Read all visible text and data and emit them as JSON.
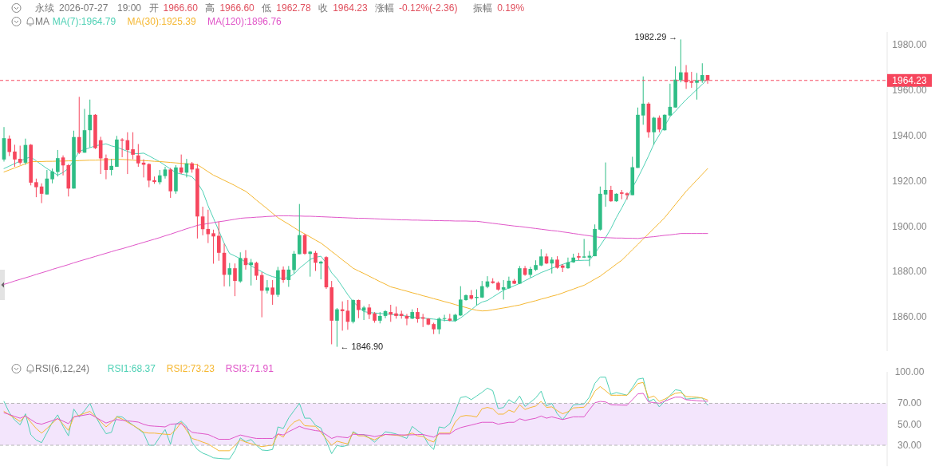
{
  "chart_data": [
    {
      "type": "candlestick",
      "title": "永续 2026-07-27 19:00 开 1966.60 高 1966.60 低 1962.78 收 1964.23 涨幅 -0.12%(-2.36) 振幅 0.19%",
      "legend_title": "MA",
      "legend": "top",
      "tick_labels": "y",
      "categories": [
        null,
        null,
        null,
        null,
        null,
        null,
        null,
        null,
        null,
        null,
        null,
        null,
        null,
        null,
        null,
        null,
        null,
        null,
        null,
        null,
        null,
        null,
        null,
        null,
        null,
        null,
        null,
        null,
        null,
        null,
        null,
        null,
        null,
        null,
        null,
        null,
        null,
        null,
        null,
        null,
        null,
        null,
        null,
        null,
        null,
        null,
        null,
        null,
        null,
        null,
        null,
        null,
        null,
        null,
        null,
        null,
        null,
        null,
        null,
        null,
        null,
        null,
        null,
        null,
        null,
        null,
        null,
        null,
        null,
        null,
        null,
        null,
        null,
        null,
        null,
        null,
        null,
        null,
        null,
        null,
        null,
        null,
        null,
        null,
        null,
        null,
        null,
        null,
        null,
        null,
        null,
        null,
        null,
        null,
        null,
        null,
        null,
        null,
        null,
        null,
        null,
        null,
        null,
        null,
        null,
        null,
        null,
        null,
        null,
        null,
        null,
        null,
        null,
        null,
        null,
        null,
        null,
        null,
        null,
        null,
        null,
        null,
        null,
        null,
        null,
        null,
        null,
        null,
        null,
        null,
        null,
        null
      ],
      "ohlc": [
        [
          1929.4,
          1943.7,
          1928.5,
          1938.8
        ],
        [
          1938.6,
          1940,
          1930.9,
          1932.7
        ],
        [
          1932.9,
          1935.9,
          1926.2,
          1929.4
        ],
        [
          1929.7,
          1935.5,
          1927.1,
          1928
        ],
        [
          1928,
          1938.6,
          1927.1,
          1935.8
        ],
        [
          1935.9,
          1936.2,
          1918,
          1919.2
        ],
        [
          1919.4,
          1921,
          1912.8,
          1917.2
        ],
        [
          1917.5,
          1918.9,
          1910.2,
          1914.3
        ],
        [
          1914,
          1924.8,
          1914,
          1921
        ],
        [
          1920.7,
          1925.4,
          1918.9,
          1924.1
        ],
        [
          1923.9,
          1933.6,
          1921.9,
          1930
        ],
        [
          1930.3,
          1931.2,
          1922.4,
          1926.8
        ],
        [
          1926.9,
          1927.4,
          1913.1,
          1916.6
        ],
        [
          1916.6,
          1942.1,
          1916.6,
          1939.3
        ],
        [
          1939.3,
          1957,
          1931.8,
          1932.4
        ],
        [
          1932.4,
          1951.7,
          1932.4,
          1942.3
        ],
        [
          1942.3,
          1955.8,
          1934.7,
          1949.1
        ],
        [
          1949.1,
          1949.4,
          1934,
          1934.4
        ],
        [
          1937.9,
          1939.4,
          1923,
          1929.9
        ],
        [
          1930,
          1931.6,
          1920.7,
          1924.8
        ],
        [
          1924.8,
          1929.7,
          1922.4,
          1926.6
        ],
        [
          1926.2,
          1939.8,
          1926.2,
          1938.2
        ],
        [
          1938.2,
          1938.8,
          1930.4,
          1937.7
        ],
        [
          1937.9,
          1941.4,
          1923,
          1933.6
        ],
        [
          1933.9,
          1941.4,
          1929.5,
          1931.5
        ],
        [
          1931.2,
          1936.2,
          1926.2,
          1927.7
        ],
        [
          1928,
          1929.5,
          1921.5,
          1927.1
        ],
        [
          1927.4,
          1927.7,
          1917.2,
          1920.1
        ],
        [
          1920.3,
          1921.9,
          1918.7,
          1919.5
        ],
        [
          1919.4,
          1924.8,
          1918.4,
          1922.4
        ],
        [
          1922.1,
          1926.2,
          1921,
          1925
        ],
        [
          1925,
          1925.7,
          1912.5,
          1915.4
        ],
        [
          1915.4,
          1926.9,
          1914.3,
          1925.9
        ],
        [
          1925.9,
          1931.6,
          1923,
          1923.6
        ],
        [
          1923.6,
          1929.7,
          1921.5,
          1927.7
        ],
        [
          1927.7,
          1928.3,
          1923.6,
          1925
        ],
        [
          1925.4,
          1927.4,
          1894.6,
          1904.3
        ],
        [
          1904.3,
          1908.6,
          1896,
          1898.7
        ],
        [
          1898.8,
          1907.3,
          1892.6,
          1896.5
        ],
        [
          1896.9,
          1898.5,
          1883.5,
          1895.5
        ],
        [
          1895.8,
          1902,
          1884.8,
          1888.3
        ],
        [
          1888.3,
          1892.3,
          1873.5,
          1878.6
        ],
        [
          1878.6,
          1883.8,
          1873.5,
          1881.5
        ],
        [
          1881.5,
          1883.6,
          1869.2,
          1875.9
        ],
        [
          1875.7,
          1888.5,
          1875.1,
          1886
        ],
        [
          1886,
          1889.5,
          1880.9,
          1882.9
        ],
        [
          1882.9,
          1885.6,
          1873.9,
          1884.1
        ],
        [
          1883.9,
          1884.4,
          1876.3,
          1878.2
        ],
        [
          1878.5,
          1879.8,
          1859.9,
          1871.6
        ],
        [
          1871.6,
          1876.3,
          1870.4,
          1873
        ],
        [
          1873,
          1876.3,
          1865.4,
          1869.8
        ],
        [
          1869.8,
          1882.1,
          1868.9,
          1880.6
        ],
        [
          1880.9,
          1882.3,
          1875.1,
          1876.3
        ],
        [
          1876.3,
          1882.5,
          1873.3,
          1880.9
        ],
        [
          1880.7,
          1889.1,
          1879.2,
          1887.9
        ],
        [
          1887.7,
          1909.8,
          1887.7,
          1896.1
        ],
        [
          1896.1,
          1896.7,
          1887.4,
          1887.9
        ],
        [
          1887.8,
          1889.1,
          1877.8,
          1888.8
        ],
        [
          1888.3,
          1889.1,
          1880.3,
          1883.9
        ],
        [
          1883.6,
          1884.8,
          1876.6,
          1884.4
        ],
        [
          1886.4,
          1886.8,
          1872.4,
          1873.1
        ],
        [
          1873.1,
          1875.9,
          1848,
          1858.4
        ],
        [
          1858.4,
          1864,
          1846.9,
          1863.4
        ],
        [
          1863.4,
          1866.9,
          1854,
          1862.6
        ],
        [
          1862.8,
          1867.5,
          1854.4,
          1857.9
        ],
        [
          1857.9,
          1867.7,
          1857.2,
          1867.5
        ],
        [
          1867.5,
          1867.7,
          1859.5,
          1863.1
        ],
        [
          1862.8,
          1864.9,
          1858.7,
          1864.2
        ],
        [
          1864.2,
          1865.7,
          1859.1,
          1861.1
        ],
        [
          1861.6,
          1862.2,
          1857.5,
          1858.4
        ],
        [
          1858.4,
          1862.2,
          1857.2,
          1860.5
        ],
        [
          1860.5,
          1863,
          1859.5,
          1862.6
        ],
        [
          1862.2,
          1865.4,
          1857.9,
          1861.1
        ],
        [
          1861.6,
          1864.6,
          1859.3,
          1860.5
        ],
        [
          1861.4,
          1862.8,
          1859.3,
          1860.5
        ],
        [
          1860.5,
          1861.4,
          1856.4,
          1859.3
        ],
        [
          1859.3,
          1863.4,
          1859.1,
          1862.2
        ],
        [
          1862.2,
          1864,
          1857.5,
          1859.1
        ],
        [
          1859.9,
          1861.4,
          1855.6,
          1859.3
        ],
        [
          1859.3,
          1859.5,
          1856.4,
          1856.7
        ],
        [
          1856.9,
          1857.5,
          1852.5,
          1854.6
        ],
        [
          1854.6,
          1859.9,
          1852.5,
          1859.3
        ],
        [
          1859.3,
          1861,
          1858.1,
          1859.5
        ],
        [
          1859.3,
          1861.4,
          1858.1,
          1858.4
        ],
        [
          1858.4,
          1861.4,
          1857.9,
          1861
        ],
        [
          1860.7,
          1873.6,
          1860.5,
          1867.7
        ],
        [
          1867.5,
          1870,
          1867.2,
          1869.6
        ],
        [
          1869.6,
          1871.9,
          1867.7,
          1868.1
        ],
        [
          1868.4,
          1872.2,
          1865.1,
          1868.9
        ],
        [
          1868.6,
          1875.9,
          1868.4,
          1873.6
        ],
        [
          1873.3,
          1878,
          1872.7,
          1875.7
        ],
        [
          1875.7,
          1877.1,
          1874.7,
          1875
        ],
        [
          1875.1,
          1875.7,
          1871.6,
          1872.1
        ],
        [
          1872.1,
          1876.3,
          1867.7,
          1873.1
        ],
        [
          1872.7,
          1877.8,
          1872.4,
          1876
        ],
        [
          1876,
          1876.8,
          1874.5,
          1874.7
        ],
        [
          1874.7,
          1882.5,
          1874.5,
          1881.5
        ],
        [
          1881.5,
          1882.5,
          1878.2,
          1878.6
        ],
        [
          1878.6,
          1882.1,
          1877.4,
          1881.2
        ],
        [
          1880.8,
          1885,
          1880.3,
          1882.9
        ],
        [
          1882.7,
          1889.9,
          1882.4,
          1886.7
        ],
        [
          1886.7,
          1888,
          1883.3,
          1883.6
        ],
        [
          1883.6,
          1886.4,
          1879.2,
          1885.3
        ],
        [
          1885.3,
          1886.8,
          1881.3,
          1881.7
        ],
        [
          1882.7,
          1883.3,
          1879.8,
          1881.7
        ],
        [
          1881.5,
          1886.2,
          1881.3,
          1884.1
        ],
        [
          1884.1,
          1887.9,
          1883.9,
          1886.2
        ],
        [
          1886.8,
          1888.3,
          1885,
          1886.2
        ],
        [
          1886.2,
          1894.4,
          1886,
          1886.7
        ],
        [
          1886.2,
          1889.1,
          1882.4,
          1887
        ],
        [
          1886.8,
          1900.8,
          1886.8,
          1898.8
        ],
        [
          1898.5,
          1917.5,
          1898.1,
          1914.3
        ],
        [
          1914,
          1928.1,
          1908.6,
          1916
        ],
        [
          1916,
          1917.8,
          1910.8,
          1911
        ],
        [
          1911,
          1914.5,
          1910.8,
          1914.3
        ],
        [
          1914.9,
          1916,
          1911.9,
          1914.3
        ],
        [
          1914.5,
          1914.9,
          1911.7,
          1913.7
        ],
        [
          1913.7,
          1930.6,
          1913.7,
          1926
        ],
        [
          1925.7,
          1952.3,
          1925.7,
          1949.1
        ],
        [
          1948.8,
          1966,
          1944.7,
          1954
        ],
        [
          1954,
          1954.6,
          1939,
          1941.4
        ],
        [
          1941.4,
          1948.2,
          1935.9,
          1947.8
        ],
        [
          1947.8,
          1948.8,
          1941.4,
          1942.6
        ],
        [
          1942.3,
          1949.3,
          1942.1,
          1949.1
        ],
        [
          1948.8,
          1962.8,
          1948.4,
          1952.6
        ],
        [
          1952.3,
          1970.4,
          1952.3,
          1964.6
        ],
        [
          1964.3,
          1982.29,
          1963.4,
          1967.8
        ],
        [
          1967.8,
          1971,
          1960.5,
          1963.4
        ],
        [
          1963.9,
          1968,
          1961,
          1963.2
        ],
        [
          1963.2,
          1967.5,
          1955.8,
          1964.3
        ],
        [
          1964,
          1971.8,
          1963.2,
          1966.6
        ],
        [
          1966.6,
          1966.6,
          1962.78,
          1964.23
        ]
      ],
      "colors": [
        "#2ebd85",
        "#f6465d",
        "#f6465d",
        "#f6465d",
        "#2ebd85",
        "#f6465d",
        "#f6465d",
        "#f6465d",
        "#2ebd85",
        "#2ebd85",
        "#2ebd85",
        "#f6465d",
        "#f6465d",
        "#2ebd85",
        "#f6465d",
        "#2ebd85",
        "#2ebd85",
        "#f6465d",
        "#f6465d",
        "#f6465d",
        "#2ebd85",
        "#2ebd85",
        "#f6465d",
        "#f6465d",
        "#f6465d",
        "#f6465d",
        "#f6465d",
        "#f6465d",
        "#f6465d",
        "#2ebd85",
        "#2ebd85",
        "#f6465d",
        "#2ebd85",
        "#f6465d",
        "#2ebd85",
        "#f6465d",
        "#f6465d",
        "#f6465d",
        "#f6465d",
        "#f6465d",
        "#f6465d",
        "#f6465d",
        "#2ebd85",
        "#f6465d",
        "#2ebd85",
        "#f6465d",
        "#2ebd85",
        "#f6465d",
        "#f6465d",
        "#2ebd85",
        "#f6465d",
        "#2ebd85",
        "#f6465d",
        "#2ebd85",
        "#2ebd85",
        "#2ebd85",
        "#f6465d",
        "#2ebd85",
        "#f6465d",
        "#2ebd85",
        "#f6465d",
        "#f6465d",
        "#2ebd85",
        "#f6465d",
        "#f6465d",
        "#2ebd85",
        "#f6465d",
        "#2ebd85",
        "#f6465d",
        "#f6465d",
        "#2ebd85",
        "#2ebd85",
        "#f6465d",
        "#f6465d",
        "#f6465d",
        "#f6465d",
        "#2ebd85",
        "#f6465d",
        "#f6465d",
        "#f6465d",
        "#f6465d",
        "#2ebd85",
        "#2ebd85",
        "#f6465d",
        "#2ebd85",
        "#2ebd85",
        "#2ebd85",
        "#f6465d",
        "#2ebd85",
        "#2ebd85",
        "#2ebd85",
        "#f6465d",
        "#f6465d",
        "#2ebd85",
        "#2ebd85",
        "#f6465d",
        "#2ebd85",
        "#f6465d",
        "#2ebd85",
        "#2ebd85",
        "#2ebd85",
        "#f6465d",
        "#2ebd85",
        "#f6465d",
        "#f6465d",
        "#2ebd85",
        "#2ebd85",
        "#f6465d",
        "#2ebd85",
        "#2ebd85",
        "#2ebd85",
        "#2ebd85",
        "#2ebd85",
        "#f6465d",
        "#2ebd85",
        "#f6465d",
        "#f6465d",
        "#2ebd85",
        "#2ebd85",
        "#2ebd85",
        "#f6465d",
        "#2ebd85",
        "#f6465d",
        "#2ebd85",
        "#2ebd85",
        "#2ebd85",
        "#2ebd85",
        "#f6465d",
        "#f6465d",
        "#2ebd85",
        "#2ebd85",
        "#f6465d"
      ],
      "series": [
        {
          "name": "MA(7):1964.79",
          "type": "line",
          "color": "#4fd1b5",
          "values": [
            1925.4,
            1926.5,
            1927.6,
            1928.7,
            1929.8,
            1930.5,
            1928.8,
            1927.1,
            1925.4,
            1924.0,
            1922.5,
            1923.7,
            1925.5,
            1929.0,
            1933.0,
            1933.8,
            1934.6,
            1935.4,
            1935.9,
            1936.3,
            1935.4,
            1934.8,
            1933.9,
            1933.0,
            1932.1,
            1932.0,
            1932.2,
            1931.0,
            1929.7,
            1928.4,
            1926.8,
            1925.2,
            1923.6,
            1923.0,
            1922.5,
            1921.8,
            1919.2,
            1915.4,
            1909.0,
            1903.5,
            1898.0,
            1892.5,
            1888.0,
            1886.9,
            1885.7,
            1884.2,
            1882.6,
            1881.2,
            1880.0,
            1878.7,
            1877.8,
            1877.3,
            1876.9,
            1877.5,
            1879.0,
            1881.5,
            1883.4,
            1885.4,
            1886.3,
            1886.8,
            1883.7,
            1879.5,
            1876.9,
            1873.4,
            1869.9,
            1866.8,
            1864.4,
            1862.4,
            1862.0,
            1861.8,
            1861.6,
            1861.4,
            1861.2,
            1861.0,
            1860.7,
            1860.4,
            1860.1,
            1859.8,
            1859.6,
            1859.3,
            1859.1,
            1858.8,
            1858.6,
            1858.4,
            1858.2,
            1859.6,
            1861.4,
            1863.2,
            1865.2,
            1866.6,
            1867.3,
            1868.8,
            1870.3,
            1871.8,
            1872.8,
            1873.8,
            1874.8,
            1876.0,
            1877.2,
            1878.4,
            1879.6,
            1880.5,
            1881.5,
            1882.4,
            1883.2,
            1884.0,
            1884.8,
            1884.9,
            1885.0,
            1885.0,
            1888.0,
            1891.5,
            1895.0,
            1899.0,
            1903.8,
            1908.0,
            1912.5,
            1917.0,
            1921.3,
            1926.0,
            1931.0,
            1936.3,
            1940.2,
            1944.2,
            1948.2,
            1950.7,
            1953.3,
            1955.8,
            1958.0,
            1960.3,
            1962.5,
            1964.8
          ]
        },
        {
          "name": "MA(30):1925.39",
          "type": "line",
          "color": "#f5b731",
          "values": [
            1923.9,
            1924.8,
            1925.7,
            1926.6,
            1927.5,
            1928.4,
            1928.5,
            1928.5,
            1928.6,
            1928.6,
            1928.7,
            1928.7,
            1928.8,
            1928.8,
            1928.9,
            1929.0,
            1929.1,
            1929.1,
            1929.2,
            1929.3,
            1929.4,
            1929.5,
            1929.4,
            1929.3,
            1929.1,
            1929.0,
            1928.9,
            1928.8,
            1928.6,
            1928.5,
            1928.3,
            1928.1,
            1927.9,
            1927.7,
            1927.5,
            1927.3,
            1927.1,
            1925.6,
            1924.0,
            1922.5,
            1921.4,
            1920.2,
            1919.1,
            1917.9,
            1916.6,
            1915.4,
            1913.5,
            1911.5,
            1909.6,
            1907.7,
            1905.7,
            1903.8,
            1902.3,
            1900.9,
            1899.4,
            1897.9,
            1896.6,
            1895.3,
            1893.9,
            1892.6,
            1890.8,
            1888.9,
            1887.1,
            1885.2,
            1883.4,
            1881.5,
            1880.3,
            1879.2,
            1878.0,
            1876.8,
            1875.6,
            1874.5,
            1873.3,
            1872.7,
            1872.0,
            1871.4,
            1870.7,
            1870.1,
            1869.4,
            1868.8,
            1868.1,
            1867.5,
            1866.8,
            1866.2,
            1865.5,
            1864.8,
            1864.2,
            1863.5,
            1863.0,
            1862.7,
            1862.8,
            1863.2,
            1863.6,
            1864.0,
            1864.4,
            1864.9,
            1865.3,
            1866.0,
            1866.6,
            1867.2,
            1867.9,
            1868.5,
            1869.2,
            1869.8,
            1870.6,
            1871.5,
            1872.3,
            1873.2,
            1874.0,
            1875.3,
            1876.7,
            1878.0,
            1879.8,
            1881.5,
            1883.3,
            1885.0,
            1887.3,
            1889.7,
            1892.0,
            1894.4,
            1896.7,
            1899.1,
            1901.4,
            1903.8,
            1906.7,
            1909.6,
            1912.5,
            1915.4,
            1917.9,
            1920.4,
            1922.9,
            1925.4
          ]
        },
        {
          "name": "MA(120):1896.76",
          "type": "line",
          "color": "#e055c8",
          "values": [
            1874.4,
            1875.1,
            1875.9,
            1876.6,
            1877.3,
            1878.0,
            1878.8,
            1879.5,
            1880.2,
            1881.0,
            1881.7,
            1882.4,
            1883.1,
            1883.9,
            1884.6,
            1885.3,
            1886.0,
            1886.7,
            1887.4,
            1888.1,
            1888.8,
            1889.5,
            1890.1,
            1890.8,
            1891.5,
            1892.2,
            1892.9,
            1893.6,
            1894.3,
            1895.0,
            1895.8,
            1896.5,
            1897.3,
            1898.1,
            1898.9,
            1899.6,
            1900.4,
            1900.8,
            1901.2,
            1901.6,
            1902.0,
            1902.3,
            1902.7,
            1903.1,
            1903.5,
            1903.7,
            1903.8,
            1904.0,
            1904.1,
            1904.3,
            1904.4,
            1904.6,
            1904.6,
            1904.6,
            1904.5,
            1904.5,
            1904.4,
            1904.4,
            1904.3,
            1904.2,
            1904.1,
            1904.0,
            1903.9,
            1903.8,
            1903.7,
            1903.6,
            1903.5,
            1903.5,
            1903.4,
            1903.3,
            1903.2,
            1903.1,
            1903.0,
            1902.9,
            1902.8,
            1902.8,
            1902.7,
            1902.7,
            1902.6,
            1902.6,
            1902.5,
            1902.5,
            1902.4,
            1902.4,
            1902.3,
            1902.3,
            1902.3,
            1902.2,
            1902.2,
            1901.9,
            1901.6,
            1901.3,
            1901.0,
            1900.7,
            1900.4,
            1900.1,
            1899.9,
            1899.6,
            1899.3,
            1899.0,
            1898.7,
            1898.4,
            1898.1,
            1897.9,
            1897.5,
            1897.2,
            1896.8,
            1896.5,
            1896.1,
            1895.8,
            1895.4,
            1895.1,
            1895.0,
            1894.9,
            1894.8,
            1894.8,
            1894.7,
            1894.7,
            1894.6,
            1894.9,
            1895.2,
            1895.4,
            1895.7,
            1896.0,
            1896.2,
            1896.5,
            1896.8,
            1896.8,
            1896.8,
            1896.8,
            1896.8,
            1896.8
          ]
        }
      ],
      "ylim": [
        1845,
        1985.6
      ],
      "yticks": [
        {
          "value": 1860,
          "label": "1860.00"
        },
        {
          "value": 1880,
          "label": "1880.00"
        },
        {
          "value": 1900,
          "label": "1900.00"
        },
        {
          "value": 1920,
          "label": "1920.00"
        },
        {
          "value": 1940,
          "label": "1940.00"
        },
        {
          "value": 1960,
          "label": "1960.00"
        },
        {
          "value": 1980,
          "label": "1980.00"
        }
      ],
      "ref_lines": [
        {
          "axis": "y",
          "value": 1964.23,
          "label": "1964.23",
          "color": "#f6465d",
          "line_style": "dashed"
        }
      ],
      "annotations": [
        "1982.29 →",
        "← 1846.90"
      ]
    },
    {
      "type": "line",
      "legend_title": "RSI(6,12,24)",
      "legend": "top",
      "tick_labels": "y",
      "categories": [
        null,
        null,
        null,
        null,
        null,
        null,
        null,
        null,
        null,
        null,
        null,
        null,
        null,
        null,
        null,
        null,
        null,
        null,
        null,
        null,
        null,
        null,
        null,
        null,
        null,
        null,
        null,
        null,
        null,
        null,
        null,
        null,
        null,
        null,
        null,
        null,
        null,
        null,
        null,
        null,
        null,
        null,
        null,
        null,
        null,
        null,
        null,
        null,
        null,
        null,
        null,
        null,
        null,
        null,
        null,
        null,
        null,
        null,
        null,
        null,
        null,
        null,
        null,
        null,
        null,
        null,
        null,
        null,
        null,
        null,
        null,
        null,
        null,
        null,
        null,
        null,
        null,
        null,
        null,
        null,
        null,
        null,
        null,
        null,
        null,
        null,
        null,
        null,
        null,
        null,
        null,
        null,
        null,
        null,
        null,
        null,
        null,
        null,
        null,
        null,
        null,
        null,
        null,
        null,
        null,
        null,
        null,
        null,
        null,
        null,
        null,
        null,
        null,
        null,
        null,
        null,
        null,
        null,
        null,
        null,
        null,
        null,
        null,
        null,
        null,
        null,
        null,
        null,
        null,
        null,
        null,
        null
      ],
      "series": [
        {
          "name": "RSI1:68.37",
          "color": "#4fd1b5",
          "values": [
            71.8,
            61,
            54,
            49.5,
            60,
            40,
            35,
            32.5,
            42,
            52,
            59,
            48,
            39,
            64.5,
            57,
            63,
            70,
            58,
            49,
            41,
            42.3,
            57.5,
            57,
            53,
            49.3,
            45.5,
            41.5,
            30,
            30,
            38,
            45,
            31,
            50,
            53,
            48,
            33,
            26,
            22.5,
            20.5,
            18,
            17.5,
            17.1,
            17,
            25,
            37,
            33.5,
            35.5,
            30,
            25.5,
            25,
            26,
            47.5,
            46,
            56,
            63,
            70,
            55.8,
            55.8,
            49,
            46.5,
            34,
            22,
            29.8,
            28.8,
            30,
            43,
            40,
            40.3,
            37,
            33,
            38,
            42.9,
            42,
            40.8,
            38.5,
            36.5,
            48,
            44,
            40.3,
            31,
            26,
            47.5,
            46.5,
            50.5,
            62,
            75.5,
            76.5,
            73.5,
            77,
            80.5,
            84.5,
            82,
            65,
            66,
            73.5,
            70,
            77,
            67,
            71,
            75.2,
            81.6,
            67.5,
            70,
            60,
            54.5,
            61,
            68.5,
            69,
            69.5,
            76,
            89,
            95,
            95,
            78.5,
            80.3,
            79,
            77.7,
            85,
            93,
            94,
            72,
            73.9,
            66.6,
            72,
            77.5,
            82.9,
            82.1,
            74,
            74.5,
            75,
            75.2,
            68.4
          ]
        },
        {
          "name": "RSI2:73.23",
          "color": "#f5b731",
          "values": [
            62.3,
            59,
            56,
            52.7,
            58.4,
            52,
            46,
            41.6,
            46,
            51,
            55.8,
            50,
            44.2,
            57.1,
            58.5,
            60.5,
            62.3,
            57.5,
            52.5,
            47.5,
            52,
            57.1,
            55,
            52,
            49,
            46,
            42.4,
            41.6,
            41.6,
            41,
            40.5,
            40.3,
            45,
            51.9,
            44,
            36.5,
            35,
            33,
            31.3,
            28,
            24.8,
            24.8,
            24.8,
            30,
            35.2,
            33,
            31.5,
            30,
            28.7,
            29.5,
            30,
            40.8,
            37.7,
            47,
            52,
            54.5,
            48.6,
            48.3,
            48.1,
            42.4,
            36,
            30,
            33.9,
            32.5,
            31.3,
            42.4,
            39,
            39,
            37,
            35.2,
            38,
            40.3,
            40,
            39.5,
            39,
            40,
            41.6,
            39,
            38.5,
            35,
            33.1,
            41.6,
            41.6,
            41.6,
            52,
            57.5,
            58.4,
            58,
            57,
            64.8,
            66.1,
            64.8,
            59.7,
            59.7,
            63.5,
            61.5,
            68.7,
            64.1,
            66,
            67.4,
            71.8,
            66.1,
            66.6,
            63,
            60,
            62,
            65.6,
            66,
            66.3,
            72,
            81.6,
            86,
            82,
            77.7,
            77.7,
            77.7,
            77.7,
            83,
            88.8,
            89.9,
            75.2,
            77,
            71.8,
            74,
            77,
            79.5,
            80.3,
            76.5,
            76.2,
            75.9,
            75,
            73.2
          ]
        },
        {
          "name": "RSI3:71.91",
          "color": "#e055c8",
          "values": [
            61,
            59.3,
            57.5,
            55.8,
            57.9,
            54.5,
            51.2,
            50.1,
            51.8,
            53.5,
            55.3,
            53,
            50.6,
            57.1,
            57.9,
            58.8,
            59.7,
            57,
            54,
            51.2,
            53,
            54.5,
            53.9,
            53.3,
            52.7,
            52.1,
            50,
            48.6,
            48.2,
            47.9,
            47.5,
            50.1,
            50.4,
            50.6,
            46.5,
            42.4,
            41.6,
            41,
            40.3,
            38,
            35.7,
            35.7,
            35.7,
            37.8,
            39.8,
            38.6,
            37.4,
            36.5,
            36.5,
            36.5,
            36.5,
            40.8,
            39.8,
            43,
            45.5,
            48.1,
            46,
            45,
            44,
            43.4,
            40,
            36.5,
            38.3,
            37.7,
            37.2,
            40.5,
            40.3,
            40,
            39.5,
            38.3,
            39.3,
            40.3,
            40.1,
            40,
            39.9,
            39.8,
            40,
            40.2,
            40.3,
            39,
            37.7,
            40.8,
            40.8,
            40.8,
            44.5,
            46.8,
            48.1,
            49.3,
            50.6,
            51.9,
            51.9,
            51.9,
            50.1,
            51,
            51.9,
            51.9,
            55.3,
            53.7,
            54.8,
            55.8,
            57.9,
            55.8,
            57.1,
            55.8,
            54.5,
            55.8,
            57.1,
            57.1,
            57.1,
            64,
            70.5,
            71.8,
            71.3,
            68.7,
            68.5,
            68.3,
            68.2,
            73.5,
            79,
            79.5,
            71.3,
            70.7,
            70,
            72,
            74,
            75.9,
            75.9,
            73.4,
            73,
            72.5,
            72.2,
            71.9
          ]
        }
      ],
      "ylim": [
        10,
        100
      ],
      "yticks": [
        {
          "value": 30,
          "label": "30.00"
        },
        {
          "value": 50,
          "label": "50.00"
        },
        {
          "value": 70,
          "label": "70.00"
        },
        {
          "value": 100,
          "label": "100.00"
        }
      ],
      "bands": [
        {
          "axis": "y",
          "from": 30,
          "to": 70,
          "color": "#f3e5fc"
        }
      ],
      "ref_lines": [
        {
          "axis": "y",
          "value": 70,
          "color": "#b5b5b5",
          "line_style": "dashed"
        },
        {
          "axis": "y",
          "value": 30,
          "color": "#b5b5b5",
          "line_style": "dashed"
        }
      ]
    }
  ]
}
